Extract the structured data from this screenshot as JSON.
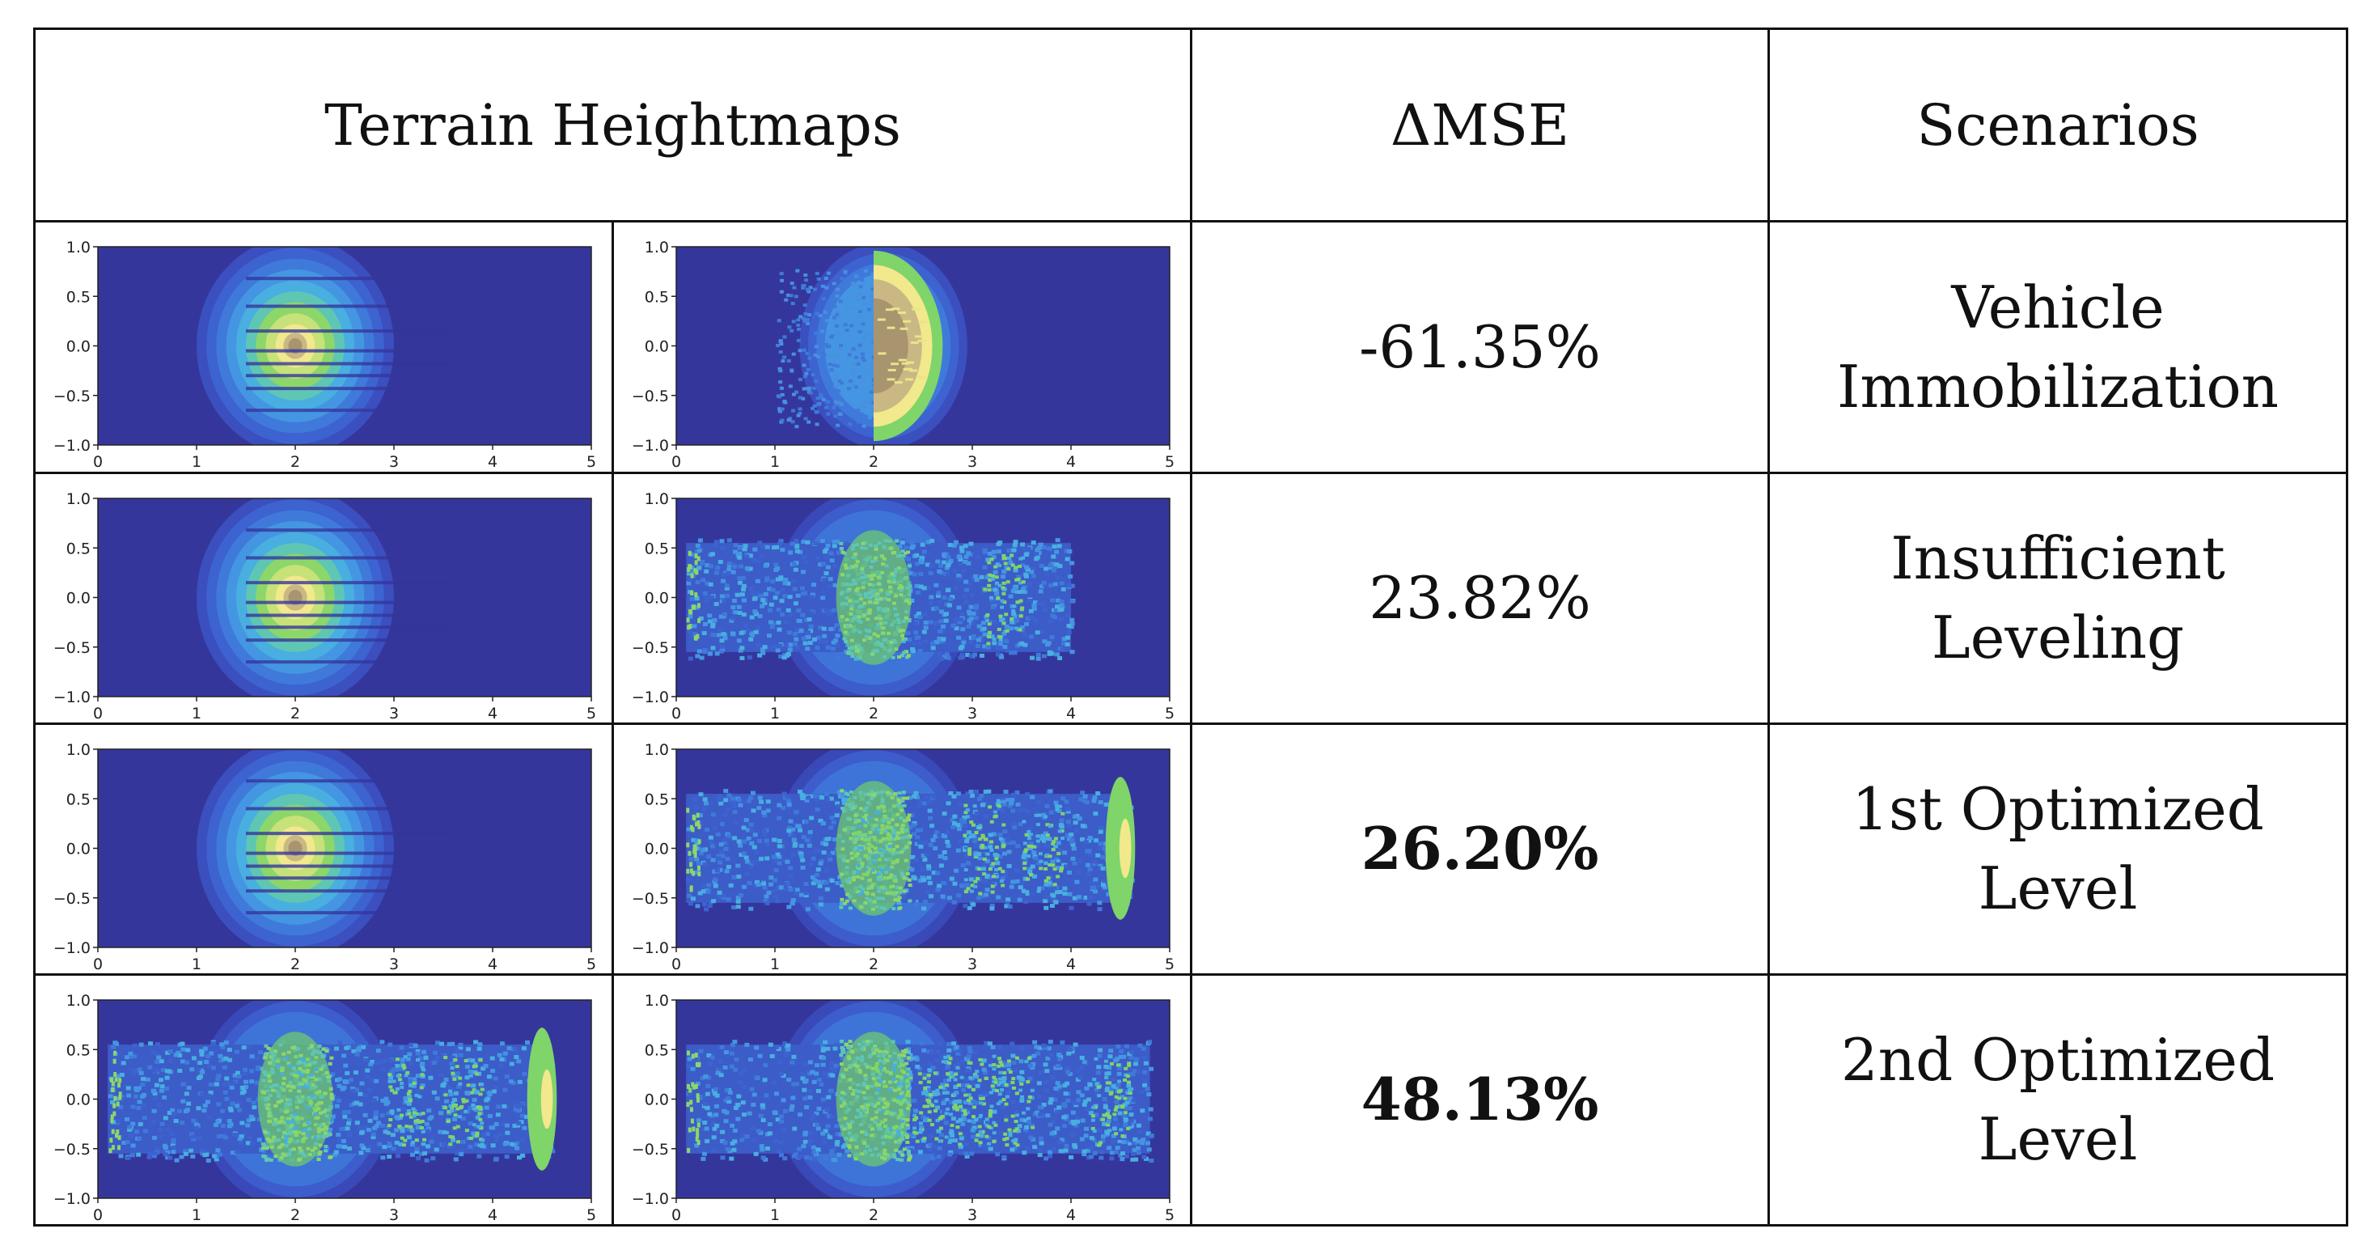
{
  "header": {
    "heightmaps": "Terrain Heightmaps",
    "delta_mse": "ΔMSE",
    "scenarios": "Scenarios"
  },
  "rows": [
    {
      "delta": "-61.35%",
      "bold": false,
      "scenario_line1": "Vehicle",
      "scenario_line2": "Immobilization"
    },
    {
      "delta": "23.82%",
      "bold": false,
      "scenario_line1": "Insufficient",
      "scenario_line2": "Leveling"
    },
    {
      "delta": "26.20%",
      "bold": true,
      "scenario_line1": "1st Optimized",
      "scenario_line2": "Level"
    },
    {
      "delta": "48.13%",
      "bold": true,
      "scenario_line1": "2nd Optimized",
      "scenario_line2": "Level"
    }
  ],
  "chart_data": {
    "type": "heatmap",
    "x_ticks": [
      "0",
      "1",
      "2",
      "3",
      "4",
      "5"
    ],
    "y_ticks": [
      "1.0",
      "0.5",
      "0.0",
      "−0.5",
      "−1.0"
    ],
    "xlim": [
      0,
      5
    ],
    "ylim": [
      -1,
      1
    ],
    "colors": {
      "background": "#35369b",
      "low": "#3d63d0",
      "mid": "#49a8e6",
      "green": "#7fd46a",
      "yellow": "#f2e88c",
      "peak": "#a8946e"
    }
  }
}
